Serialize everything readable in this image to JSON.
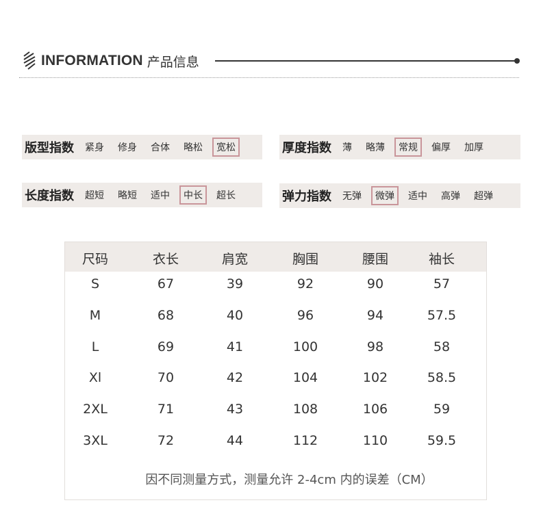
{
  "header": {
    "title_en": "INFORMATION",
    "title_cn": "产品信息",
    "icon": "diagonal-stripes-icon"
  },
  "indices": [
    {
      "label": "版型指数",
      "options": [
        "紧身",
        "修身",
        "合体",
        "略松",
        "宽松"
      ],
      "selected": 4
    },
    {
      "label": "厚度指数",
      "options": [
        "薄",
        "略薄",
        "常规",
        "偏厚",
        "加厚"
      ],
      "selected": 2
    },
    {
      "label": "长度指数",
      "options": [
        "超短",
        "略短",
        "适中",
        "中长",
        "超长"
      ],
      "selected": 3
    },
    {
      "label": "弹力指数",
      "options": [
        "无弹",
        "微弹",
        "适中",
        "高弹",
        "超弹"
      ],
      "selected": 1
    }
  ],
  "colors": {
    "band": "#efebe8",
    "selected_border": "#c9959a"
  },
  "size_table": {
    "headers": [
      "尺码",
      "衣长",
      "肩宽",
      "胸围",
      "腰围",
      "袖长"
    ],
    "rows": [
      [
        "S",
        "67",
        "39",
        "92",
        "90",
        "57"
      ],
      [
        "M",
        "68",
        "40",
        "96",
        "94",
        "57.5"
      ],
      [
        "L",
        "69",
        "41",
        "100",
        "98",
        "58"
      ],
      [
        "Xl",
        "70",
        "42",
        "104",
        "102",
        "58.5"
      ],
      [
        "2XL",
        "71",
        "43",
        "108",
        "106",
        "59"
      ],
      [
        "3XL",
        "72",
        "44",
        "112",
        "110",
        "59.5"
      ]
    ],
    "note": "因不同测量方式，测量允许 2-4cm 内的误差（CM）"
  }
}
